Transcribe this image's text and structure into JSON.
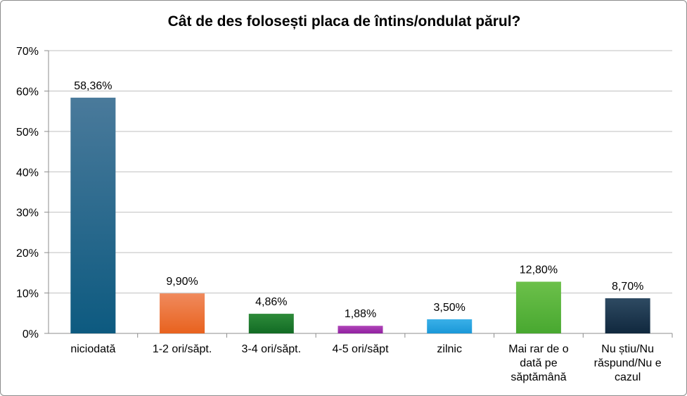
{
  "chart_data": {
    "type": "bar",
    "title": "Cât de des folosești placa de întins/ondulat părul?",
    "categories": [
      [
        "niciodată"
      ],
      [
        "1-2 ori/săpt."
      ],
      [
        "3-4 ori/săpt."
      ],
      [
        "4-5 ori/săpt"
      ],
      [
        "zilnic"
      ],
      [
        "Mai rar de o",
        "dată pe",
        "săptămână"
      ],
      [
        "Nu știu/Nu",
        "răspund/Nu e",
        "cazul"
      ]
    ],
    "values": [
      58.36,
      9.9,
      4.86,
      1.88,
      3.5,
      12.8,
      8.7
    ],
    "data_labels": [
      "58,36%",
      "9,90%",
      "4,86%",
      "1,88%",
      "3,50%",
      "12,80%",
      "8,70%"
    ],
    "ylim": [
      0,
      70
    ],
    "yticks": [
      "0%",
      "10%",
      "20%",
      "30%",
      "40%",
      "50%",
      "60%",
      "70%"
    ],
    "grid": true,
    "bar_colors": [
      [
        "#4a7a9b",
        "#0d5a80"
      ],
      [
        "#f08a5d",
        "#e8621e"
      ],
      [
        "#2e8b3a",
        "#126b24"
      ],
      [
        "#b045b8",
        "#9020a0"
      ],
      [
        "#3ab0e8",
        "#1a98d8"
      ],
      [
        "#6cc04a",
        "#48a830"
      ],
      [
        "#2e4a62",
        "#10283e"
      ]
    ]
  }
}
